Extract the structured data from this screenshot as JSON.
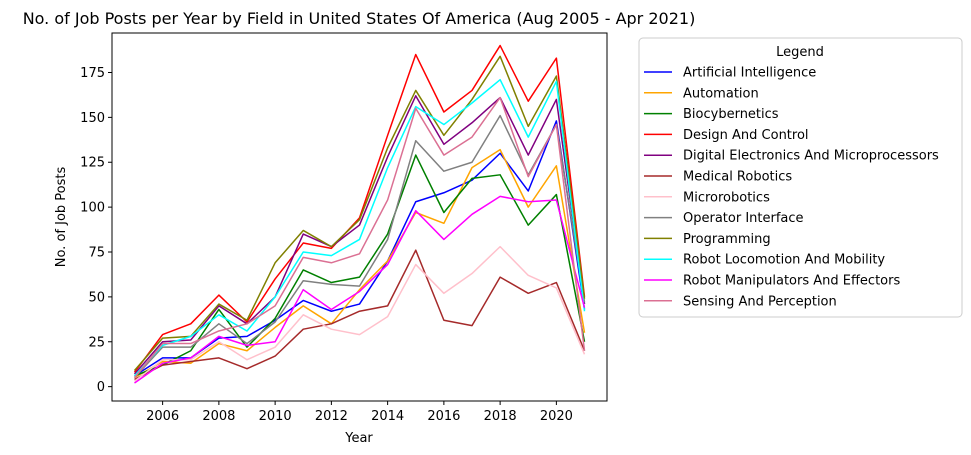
{
  "chart_data": {
    "type": "line",
    "title": "No. of Job Posts per Year by Field in United States Of America (Aug 2005 - Apr 2021)",
    "xlabel": "Year",
    "ylabel": "No. of Job Posts",
    "xlim": [
      2004.2,
      2021.8
    ],
    "ylim": [
      -8,
      197
    ],
    "xticks": [
      2006,
      2008,
      2010,
      2012,
      2014,
      2016,
      2018,
      2020
    ],
    "yticks": [
      0,
      25,
      50,
      75,
      100,
      125,
      150,
      175
    ],
    "grid": false,
    "legend": {
      "title": "Legend",
      "placement": "outside-right"
    },
    "x": [
      2005,
      2006,
      2007,
      2008,
      2009,
      2010,
      2011,
      2012,
      2013,
      2014,
      2015,
      2016,
      2017,
      2018,
      2019,
      2020,
      2021
    ],
    "series": [
      {
        "name": "Artificial Intelligence",
        "color": "#0000ff",
        "values": [
          6,
          16,
          16,
          27,
          28,
          37,
          48,
          42,
          46,
          70,
          103,
          108,
          115,
          130,
          109,
          148,
          43
        ]
      },
      {
        "name": "Automation",
        "color": "#ffa500",
        "values": [
          5,
          14,
          13,
          24,
          20,
          33,
          45,
          35,
          54,
          70,
          97,
          91,
          122,
          132,
          100,
          123,
          30
        ]
      },
      {
        "name": "Biocybernetics",
        "color": "#008000",
        "values": [
          6,
          12,
          20,
          43,
          22,
          38,
          65,
          58,
          61,
          85,
          129,
          97,
          116,
          118,
          90,
          107,
          25
        ]
      },
      {
        "name": "Design And Control",
        "color": "#ff0000",
        "values": [
          8,
          29,
          35,
          51,
          36,
          60,
          80,
          77,
          94,
          140,
          185,
          153,
          165,
          190,
          159,
          183,
          50
        ]
      },
      {
        "name": "Digital Electronics And Microprocessors",
        "color": "#800080",
        "values": [
          7,
          25,
          26,
          45,
          35,
          50,
          85,
          78,
          90,
          128,
          162,
          135,
          147,
          161,
          129,
          160,
          46
        ]
      },
      {
        "name": "Medical Robotics",
        "color": "#a52a2a",
        "values": [
          4,
          12,
          14,
          16,
          10,
          17,
          32,
          35,
          42,
          45,
          76,
          37,
          34,
          61,
          52,
          58,
          20
        ]
      },
      {
        "name": "Microrobotics",
        "color": "#ffc0cb",
        "values": [
          3,
          15,
          15,
          25,
          15,
          22,
          40,
          32,
          29,
          39,
          68,
          52,
          63,
          78,
          62,
          55,
          18
        ]
      },
      {
        "name": "Operator Interface",
        "color": "#808080",
        "values": [
          5,
          22,
          22,
          35,
          24,
          36,
          59,
          57,
          56,
          82,
          137,
          120,
          125,
          151,
          118,
          146,
          47
        ]
      },
      {
        "name": "Programming",
        "color": "#808000",
        "values": [
          9,
          27,
          28,
          46,
          37,
          69,
          87,
          78,
          93,
          133,
          165,
          140,
          160,
          184,
          145,
          173,
          49
        ]
      },
      {
        "name": "Robot Locomotion And Mobility",
        "color": "#00ffff",
        "values": [
          6,
          23,
          28,
          40,
          31,
          50,
          75,
          73,
          82,
          122,
          156,
          146,
          158,
          171,
          139,
          170,
          42
        ]
      },
      {
        "name": "Robot Manipulators And Effectors",
        "color": "#ff00ff",
        "values": [
          2,
          13,
          16,
          28,
          23,
          25,
          54,
          43,
          53,
          68,
          98,
          82,
          96,
          106,
          103,
          104,
          44
        ]
      },
      {
        "name": "Sensing And Perception",
        "color": "#db7093",
        "values": [
          5,
          24,
          24,
          31,
          35,
          45,
          72,
          69,
          74,
          104,
          155,
          129,
          139,
          161,
          117,
          146,
          20
        ]
      }
    ]
  }
}
